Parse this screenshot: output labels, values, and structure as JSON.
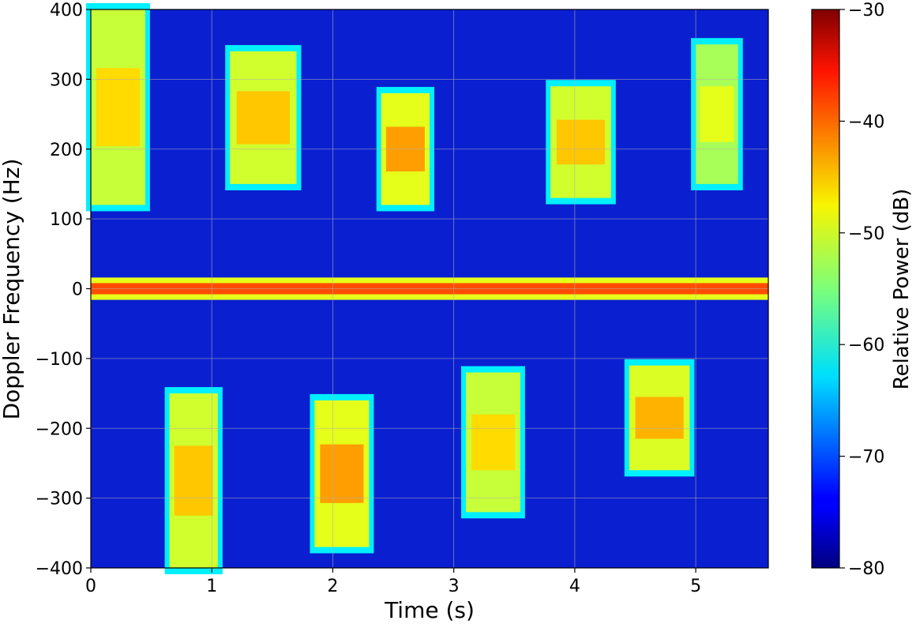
{
  "chart_data": {
    "type": "heatmap",
    "title": "",
    "xlabel": "Time (s)",
    "ylabel": "Doppler Frequency (Hz)",
    "xlim": [
      0,
      5.6
    ],
    "ylim": [
      -400,
      400
    ],
    "x_ticks": [
      0,
      1,
      2,
      3,
      4,
      5
    ],
    "x_tick_labels": [
      "0",
      "1",
      "2",
      "3",
      "4",
      "5"
    ],
    "y_ticks": [
      -400,
      -300,
      -200,
      -100,
      0,
      100,
      200,
      300,
      400
    ],
    "y_tick_labels": [
      "−400",
      "−300",
      "−200",
      "−100",
      "0",
      "100",
      "200",
      "300",
      "400"
    ],
    "grid": true,
    "colormap": "jet",
    "colorbar": {
      "label": "Relative Power (dB)",
      "range": [
        -80,
        -30
      ],
      "ticks": [
        -80,
        -70,
        -60,
        -50,
        -40,
        -30
      ],
      "tick_labels": [
        "−80",
        "−70",
        "−60",
        "−50",
        "−40",
        "−30"
      ]
    },
    "background_level_db": -72,
    "zero_doppler_band": {
      "center_hz": 0,
      "half_width_hz": 8,
      "level_db": -40
    },
    "bursts": [
      {
        "t_start": 0.0,
        "t_end": 0.45,
        "f_low": 120,
        "f_high": 400,
        "peak_db": -47
      },
      {
        "t_start": 0.65,
        "t_end": 1.05,
        "f_low": -400,
        "f_high": -150,
        "peak_db": -46
      },
      {
        "t_start": 1.15,
        "t_end": 1.7,
        "f_low": 150,
        "f_high": 340,
        "peak_db": -46
      },
      {
        "t_start": 1.85,
        "t_end": 2.3,
        "f_low": -370,
        "f_high": -160,
        "peak_db": -44
      },
      {
        "t_start": 2.4,
        "t_end": 2.8,
        "f_low": 120,
        "f_high": 280,
        "peak_db": -44
      },
      {
        "t_start": 3.1,
        "t_end": 3.55,
        "f_low": -320,
        "f_high": -120,
        "peak_db": -47
      },
      {
        "t_start": 3.8,
        "t_end": 4.3,
        "f_low": 130,
        "f_high": 290,
        "peak_db": -46
      },
      {
        "t_start": 4.45,
        "t_end": 4.95,
        "f_low": -260,
        "f_high": -110,
        "peak_db": -45
      },
      {
        "t_start": 5.0,
        "t_end": 5.35,
        "f_low": 150,
        "f_high": 350,
        "peak_db": -50
      }
    ]
  }
}
